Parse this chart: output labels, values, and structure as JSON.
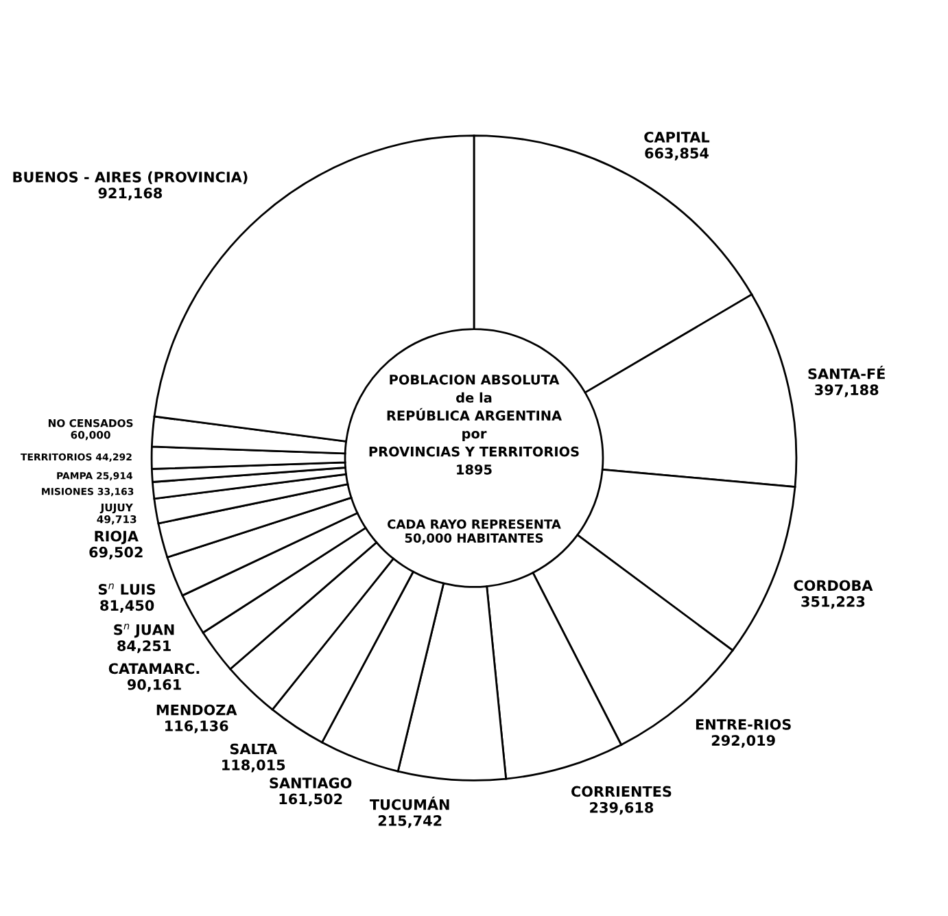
{
  "chart_data": {
    "type": "donut",
    "title": "POBLACION ABSOLUTA\nde la\nREPÚBLICA ARGENTINA\npor\nPROVINCIAS Y TERRITORIOS\n1895",
    "subtitle": "CADA RAYO REPRESENTA\n50,000 HABITANTES",
    "categories": [
      "CAPITAL",
      "SANTA-FÉ",
      "CORDOBA",
      "ENTRE-RIOS",
      "CORRIENTES",
      "TUCUMÁN",
      "SANTIAGO",
      "SALTA",
      "MENDOZA",
      "CATAMARC.",
      "S$^{n}$ JUAN",
      "S$^{n}$ LUIS",
      "RIOJA",
      "JUJUY",
      "MISIONES",
      "PAMPA",
      "TERRITORIOS",
      "NO CENSADOS",
      "BUENOS - AIRES (PROVINCIA)"
    ],
    "values": [
      663854,
      397188,
      351223,
      292019,
      239618,
      215742,
      161502,
      118015,
      116136,
      90161,
      84251,
      81450,
      69502,
      49713,
      33163,
      25914,
      44292,
      60000,
      921168
    ],
    "value_labels": [
      "663,854",
      "397,188",
      "351,223",
      "292,019",
      "239,618",
      "215,742",
      "161,502",
      "118,015",
      "116,136",
      "90,161",
      "84,251",
      "81,450",
      "69,502",
      "49,713",
      "33,163",
      "25,914",
      "44,292",
      "60,000",
      "921,168"
    ],
    "colors": [
      "#ffffff",
      "#ffffff",
      "#ffffff",
      "#ffffff",
      "#ffffff",
      "#ffffff",
      "#ffffff",
      "#ffffff",
      "#ffffff",
      "#ffffff",
      "#ffffff",
      "#ffffff",
      "#ffffff",
      "#ffffff",
      "#ffffff",
      "#ffffff",
      "#ffffff",
      "#ffffff",
      "#ffffff"
    ]
  }
}
